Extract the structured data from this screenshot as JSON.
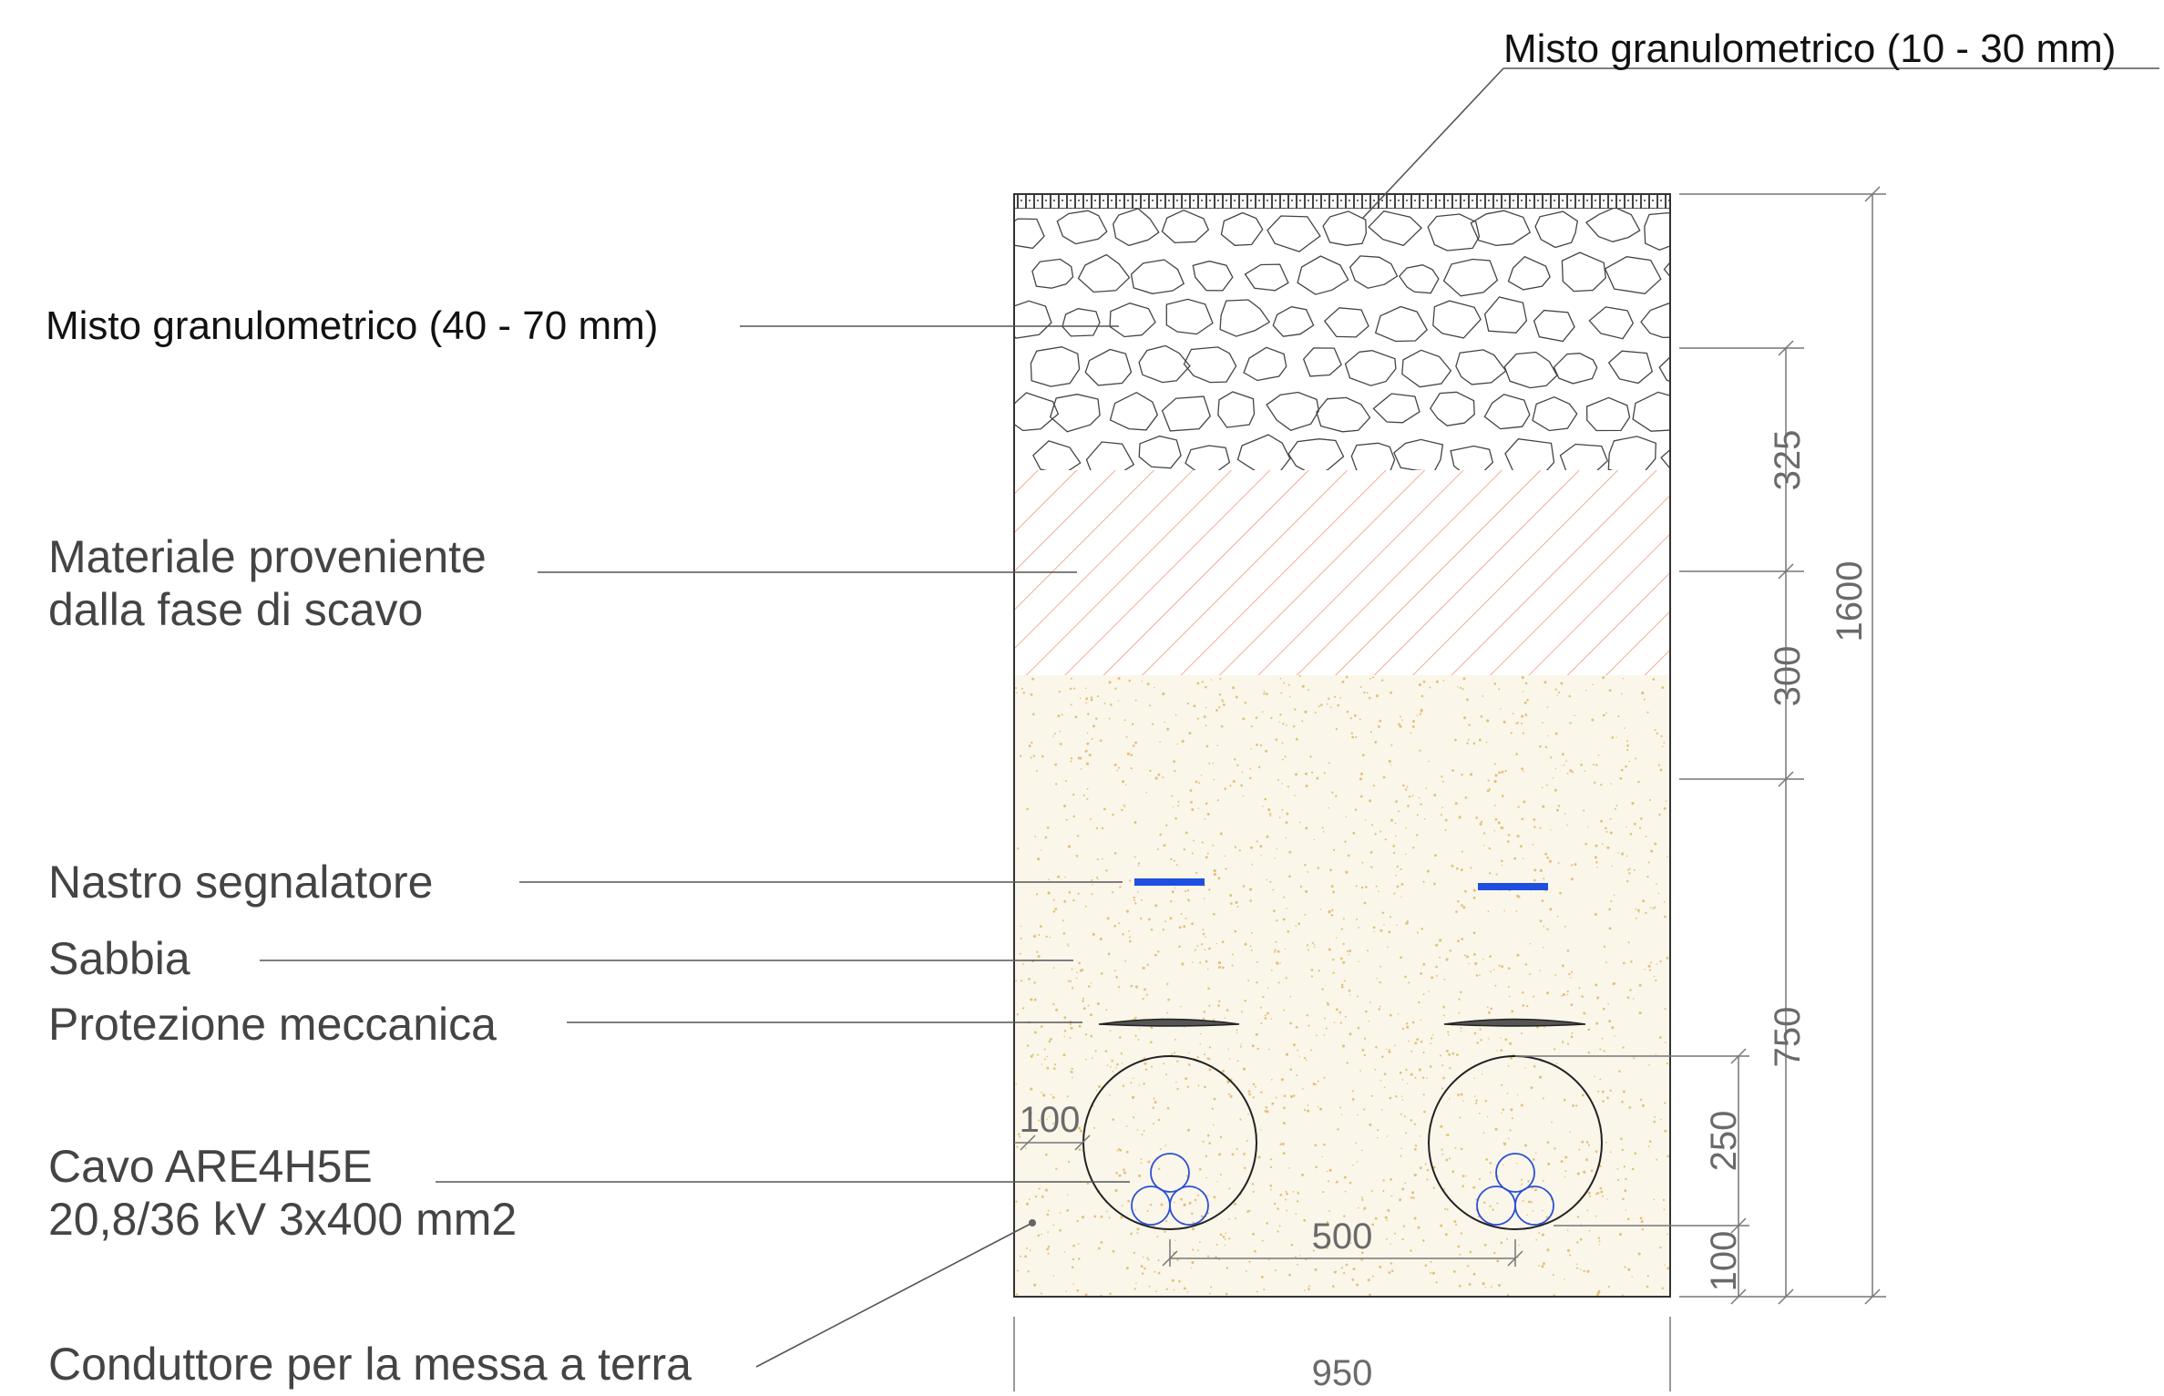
{
  "labels": {
    "fine_gravel": "Misto granulometrico (10 - 30 mm)",
    "coarse_gravel": "Misto granulometrico (40 - 70 mm)",
    "excavated_line1": "Materiale proveniente",
    "excavated_line2": "dalla fase di scavo",
    "warning_tape": "Nastro segnalatore",
    "sand": "Sabbia",
    "mech_protection": "Protezione meccanica",
    "cable_line1": "Cavo ARE4H5E",
    "cable_line2": "20,8/36 kV 3x400 mm2",
    "ground_conductor": "Conduttore per la messa a terra"
  },
  "dimensions": {
    "layer_coarse": "325",
    "layer_excavated": "300",
    "sand_to_protection": "750",
    "total_depth": "1600",
    "pipe_height": "250",
    "bottom_cover": "100",
    "side_offset": "100",
    "pipe_spacing": "500",
    "trench_width": "950"
  },
  "colors": {
    "warning_tape": "#1e4fe0",
    "excavated_hatch": "#f2a28c",
    "sand_fill": "#fbf6ea",
    "sand_dots": "#e2c27a",
    "cable": "#2a4fd6",
    "protection": "#555555"
  }
}
